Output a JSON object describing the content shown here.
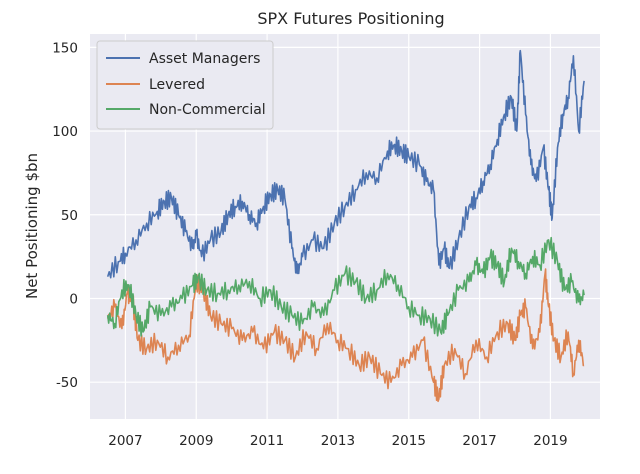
{
  "chart_data": {
    "type": "line",
    "title": "SPX Futures Positioning",
    "xlabel": "",
    "ylabel": "Net Positioning $bn",
    "xlim": [
      2006.0,
      2020.4
    ],
    "ylim": [
      -72,
      158
    ],
    "x_ticks": [
      2007,
      2009,
      2011,
      2013,
      2015,
      2017,
      2019
    ],
    "x_tick_labels": [
      "2007",
      "2009",
      "2011",
      "2013",
      "2015",
      "2017",
      "2019"
    ],
    "y_ticks": [
      -50,
      0,
      50,
      100,
      150
    ],
    "y_tick_labels": [
      "-50",
      "0",
      "50",
      "100",
      "150"
    ],
    "grid": true,
    "legend_position": "top-left",
    "series": [
      {
        "name": "Asset Managers",
        "color": "#4c72b0",
        "points": [
          [
            2006.5,
            13
          ],
          [
            2006.8,
            22
          ],
          [
            2007.0,
            27
          ],
          [
            2007.3,
            35
          ],
          [
            2007.6,
            45
          ],
          [
            2007.9,
            52
          ],
          [
            2008.1,
            58
          ],
          [
            2008.3,
            60
          ],
          [
            2008.5,
            50
          ],
          [
            2008.7,
            40
          ],
          [
            2008.9,
            30
          ],
          [
            2009.0,
            38
          ],
          [
            2009.15,
            25
          ],
          [
            2009.4,
            35
          ],
          [
            2009.7,
            40
          ],
          [
            2009.9,
            50
          ],
          [
            2010.1,
            55
          ],
          [
            2010.3,
            58
          ],
          [
            2010.5,
            50
          ],
          [
            2010.7,
            45
          ],
          [
            2010.9,
            55
          ],
          [
            2011.1,
            62
          ],
          [
            2011.3,
            65
          ],
          [
            2011.5,
            60
          ],
          [
            2011.7,
            30
          ],
          [
            2011.85,
            15
          ],
          [
            2012.0,
            25
          ],
          [
            2012.3,
            35
          ],
          [
            2012.6,
            30
          ],
          [
            2012.9,
            45
          ],
          [
            2013.2,
            55
          ],
          [
            2013.5,
            65
          ],
          [
            2013.8,
            75
          ],
          [
            2014.1,
            72
          ],
          [
            2014.4,
            88
          ],
          [
            2014.6,
            92
          ],
          [
            2014.8,
            88
          ],
          [
            2015.0,
            85
          ],
          [
            2015.3,
            80
          ],
          [
            2015.5,
            70
          ],
          [
            2015.7,
            65
          ],
          [
            2015.85,
            20
          ],
          [
            2016.0,
            30
          ],
          [
            2016.15,
            18
          ],
          [
            2016.4,
            35
          ],
          [
            2016.7,
            55
          ],
          [
            2016.9,
            60
          ],
          [
            2017.1,
            70
          ],
          [
            2017.3,
            80
          ],
          [
            2017.5,
            95
          ],
          [
            2017.7,
            110
          ],
          [
            2017.9,
            120
          ],
          [
            2018.05,
            100
          ],
          [
            2018.15,
            148
          ],
          [
            2018.3,
            110
          ],
          [
            2018.45,
            80
          ],
          [
            2018.6,
            70
          ],
          [
            2018.8,
            90
          ],
          [
            2018.95,
            65
          ],
          [
            2019.05,
            48
          ],
          [
            2019.2,
            90
          ],
          [
            2019.35,
            110
          ],
          [
            2019.5,
            120
          ],
          [
            2019.65,
            145
          ],
          [
            2019.8,
            100
          ],
          [
            2019.95,
            130
          ]
        ]
      },
      {
        "name": "Levered",
        "color": "#dd8452",
        "points": [
          [
            2006.5,
            -12
          ],
          [
            2006.7,
            -5
          ],
          [
            2006.9,
            -18
          ],
          [
            2007.05,
            3
          ],
          [
            2007.2,
            0
          ],
          [
            2007.35,
            -25
          ],
          [
            2007.6,
            -30
          ],
          [
            2007.9,
            -25
          ],
          [
            2008.2,
            -35
          ],
          [
            2008.5,
            -28
          ],
          [
            2008.8,
            -22
          ],
          [
            2009.0,
            10
          ],
          [
            2009.2,
            5
          ],
          [
            2009.4,
            -10
          ],
          [
            2009.7,
            -15
          ],
          [
            2010.0,
            -18
          ],
          [
            2010.3,
            -25
          ],
          [
            2010.6,
            -20
          ],
          [
            2010.9,
            -30
          ],
          [
            2011.2,
            -20
          ],
          [
            2011.5,
            -25
          ],
          [
            2011.8,
            -35
          ],
          [
            2012.1,
            -20
          ],
          [
            2012.4,
            -30
          ],
          [
            2012.7,
            -15
          ],
          [
            2013.0,
            -25
          ],
          [
            2013.3,
            -30
          ],
          [
            2013.6,
            -40
          ],
          [
            2013.9,
            -35
          ],
          [
            2014.2,
            -45
          ],
          [
            2014.5,
            -50
          ],
          [
            2014.8,
            -40
          ],
          [
            2015.1,
            -35
          ],
          [
            2015.4,
            -25
          ],
          [
            2015.7,
            -50
          ],
          [
            2015.85,
            -60
          ],
          [
            2016.0,
            -40
          ],
          [
            2016.3,
            -30
          ],
          [
            2016.6,
            -45
          ],
          [
            2016.9,
            -25
          ],
          [
            2017.2,
            -35
          ],
          [
            2017.5,
            -20
          ],
          [
            2017.8,
            -15
          ],
          [
            2018.0,
            -25
          ],
          [
            2018.15,
            -10
          ],
          [
            2018.3,
            -5
          ],
          [
            2018.5,
            -30
          ],
          [
            2018.7,
            -20
          ],
          [
            2018.85,
            15
          ],
          [
            2018.95,
            -5
          ],
          [
            2019.1,
            -25
          ],
          [
            2019.3,
            -35
          ],
          [
            2019.5,
            -20
          ],
          [
            2019.65,
            -45
          ],
          [
            2019.8,
            -25
          ],
          [
            2019.95,
            -40
          ]
        ]
      },
      {
        "name": "Non-Commercial",
        "color": "#55a868",
        "points": [
          [
            2006.5,
            -10
          ],
          [
            2006.7,
            -15
          ],
          [
            2006.9,
            5
          ],
          [
            2007.1,
            8
          ],
          [
            2007.3,
            -10
          ],
          [
            2007.5,
            -20
          ],
          [
            2007.7,
            -5
          ],
          [
            2008.0,
            -10
          ],
          [
            2008.3,
            -5
          ],
          [
            2008.6,
            0
          ],
          [
            2008.9,
            8
          ],
          [
            2009.05,
            12
          ],
          [
            2009.3,
            5
          ],
          [
            2009.6,
            3
          ],
          [
            2009.9,
            5
          ],
          [
            2010.2,
            8
          ],
          [
            2010.5,
            10
          ],
          [
            2010.8,
            0
          ],
          [
            2011.1,
            5
          ],
          [
            2011.4,
            -5
          ],
          [
            2011.7,
            -10
          ],
          [
            2012.0,
            -15
          ],
          [
            2012.3,
            -5
          ],
          [
            2012.6,
            -10
          ],
          [
            2012.9,
            5
          ],
          [
            2013.2,
            15
          ],
          [
            2013.5,
            10
          ],
          [
            2013.8,
            0
          ],
          [
            2014.1,
            5
          ],
          [
            2014.4,
            15
          ],
          [
            2014.7,
            8
          ],
          [
            2015.0,
            -5
          ],
          [
            2015.3,
            -10
          ],
          [
            2015.6,
            -12
          ],
          [
            2015.9,
            -20
          ],
          [
            2016.1,
            -10
          ],
          [
            2016.4,
            5
          ],
          [
            2016.7,
            10
          ],
          [
            2016.9,
            20
          ],
          [
            2017.1,
            15
          ],
          [
            2017.3,
            25
          ],
          [
            2017.5,
            20
          ],
          [
            2017.7,
            10
          ],
          [
            2017.9,
            30
          ],
          [
            2018.1,
            22
          ],
          [
            2018.3,
            15
          ],
          [
            2018.5,
            25
          ],
          [
            2018.7,
            20
          ],
          [
            2018.95,
            35
          ],
          [
            2019.2,
            22
          ],
          [
            2019.4,
            5
          ],
          [
            2019.6,
            10
          ],
          [
            2019.8,
            -2
          ],
          [
            2019.95,
            2
          ]
        ]
      }
    ]
  }
}
